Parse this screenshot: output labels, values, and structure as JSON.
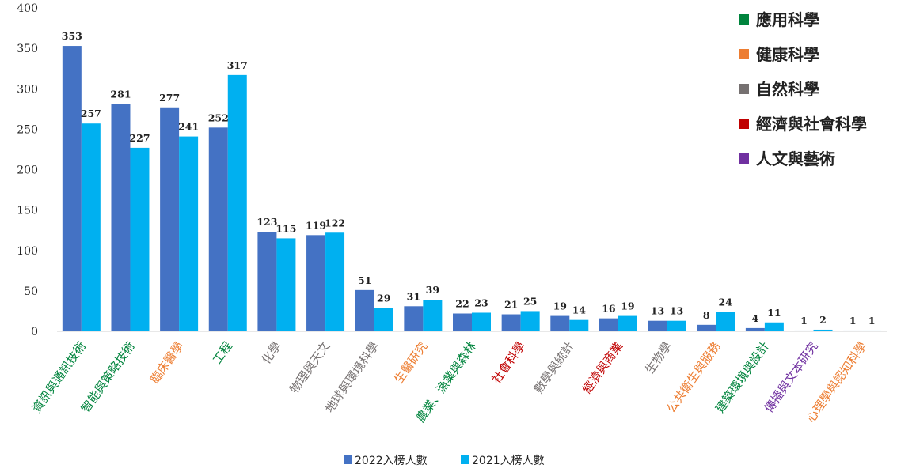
{
  "chart_data": {
    "type": "bar",
    "title": "",
    "xlabel": "",
    "ylabel": "",
    "ylim": [
      0,
      400
    ],
    "yticks": [
      0,
      50,
      100,
      150,
      200,
      250,
      300,
      350,
      400
    ],
    "grid": false,
    "legend_position": "bottom",
    "categories": [
      "資訊與通訊技術",
      "智能與策略技術",
      "臨床醫學",
      "工程",
      "化學",
      "物理與天文",
      "地球與環境科學",
      "生醫研究",
      "農業、漁業與森林",
      "社會科學",
      "數學與統計",
      "經濟與商業",
      "生物學",
      "公共衛生與服務",
      "建築環境與設計",
      "傳播與文本研究",
      "心理學與認知科學"
    ],
    "category_groups": [
      "應用科學",
      "應用科學",
      "健康科學",
      "應用科學",
      "自然科學",
      "自然科學",
      "自然科學",
      "健康科學",
      "應用科學",
      "經濟與社會科學",
      "自然科學",
      "經濟與社會科學",
      "自然科學",
      "健康科學",
      "應用科學",
      "人文與藝術",
      "健康科學"
    ],
    "series": [
      {
        "name": "2022入榜人數",
        "color": "#4472C4",
        "values": [
          353,
          281,
          277,
          252,
          123,
          119,
          51,
          31,
          22,
          21,
          19,
          16,
          13,
          8,
          4,
          1,
          1
        ]
      },
      {
        "name": "2021入榜人數",
        "color": "#00B0F0",
        "values": [
          257,
          227,
          241,
          317,
          115,
          122,
          29,
          39,
          23,
          25,
          14,
          19,
          13,
          24,
          11,
          2,
          1
        ]
      }
    ],
    "group_legend": [
      {
        "label": "應用科學",
        "color": "#00843D"
      },
      {
        "label": "健康科學",
        "color": "#ED7D31"
      },
      {
        "label": "自然科學",
        "color": "#767171"
      },
      {
        "label": "經濟與社會科學",
        "color": "#C00000"
      },
      {
        "label": "人文與藝術",
        "color": "#7030A0"
      }
    ]
  }
}
